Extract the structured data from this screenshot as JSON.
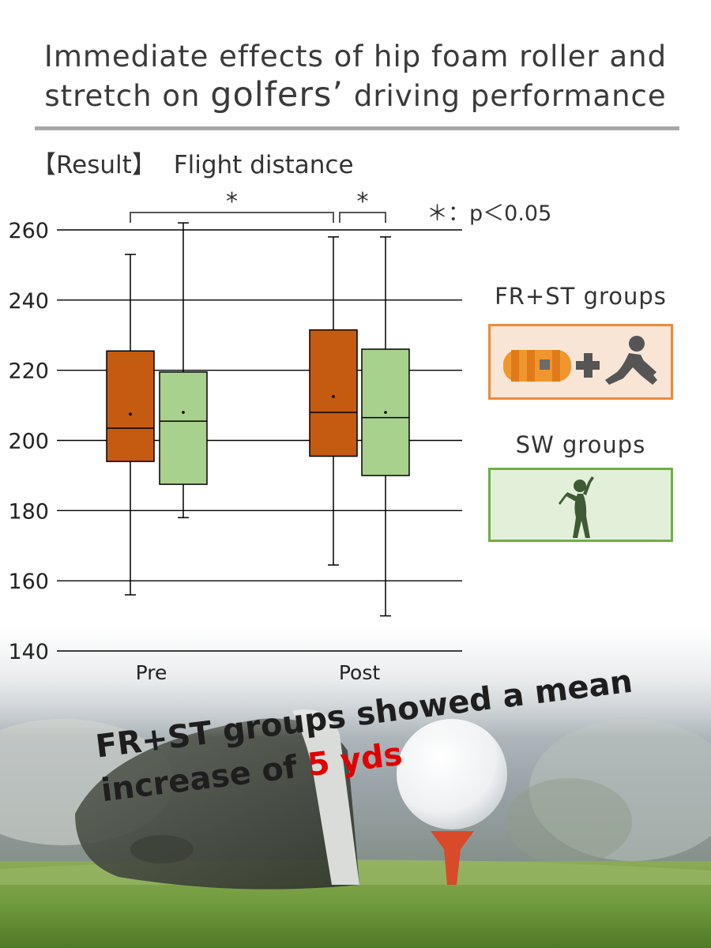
{
  "title": {
    "line1": "Immediate effects of hip foam roller and",
    "line2_pre": "stretch on ",
    "line2_em": "golfers’",
    "line2_post": " driving performance"
  },
  "section": {
    "bracket_label": "【Result】",
    "heading": "Flight distance"
  },
  "significance_note": "＊：p＜0.05",
  "legend": {
    "fr_st": {
      "label": "FR+ST groups",
      "color": "#c55a11",
      "box_fill": "#f8e5d6",
      "icon": "foam-roller-plus-stretch-icon"
    },
    "sw": {
      "label": "SW groups",
      "color": "#a9d18e",
      "box_fill": "#e2f0d9",
      "icon": "golf-swing-icon"
    }
  },
  "caption": {
    "text_pre": "FR+ST groups showed a mean",
    "text_line2_pre": "increase of ",
    "text_highlight": "5 yds"
  },
  "chart_data": {
    "type": "boxplot",
    "title": "Flight distance",
    "categories": [
      "Pre",
      "Post"
    ],
    "ylim": [
      140,
      260
    ],
    "yticks": [
      140,
      160,
      180,
      200,
      220,
      240,
      260
    ],
    "grid": true,
    "series": [
      {
        "name": "FR+ST groups",
        "color": "#c55a11",
        "boxes": [
          {
            "category": "Pre",
            "min": 156,
            "q1": 194,
            "median": 203.5,
            "q3": 225.5,
            "max": 253,
            "mean": 207.5
          },
          {
            "category": "Post",
            "min": 164.5,
            "q1": 195.5,
            "median": 208,
            "q3": 231.5,
            "max": 258,
            "mean": 212.5
          }
        ]
      },
      {
        "name": "SW groups",
        "color": "#a9d18e",
        "boxes": [
          {
            "category": "Pre",
            "min": 178,
            "q1": 187.5,
            "median": 205.5,
            "q3": 219.5,
            "max": 262,
            "mean": 208
          },
          {
            "category": "Post",
            "min": 150,
            "q1": 190,
            "median": 206.5,
            "q3": 226,
            "max": 258,
            "mean": 208
          }
        ]
      }
    ],
    "significance": [
      {
        "from": "FR+ST groups Pre",
        "to": "FR+ST groups Post",
        "label": "*"
      },
      {
        "from": "FR+ST groups Post",
        "to": "SW groups Post",
        "label": "*"
      }
    ]
  }
}
